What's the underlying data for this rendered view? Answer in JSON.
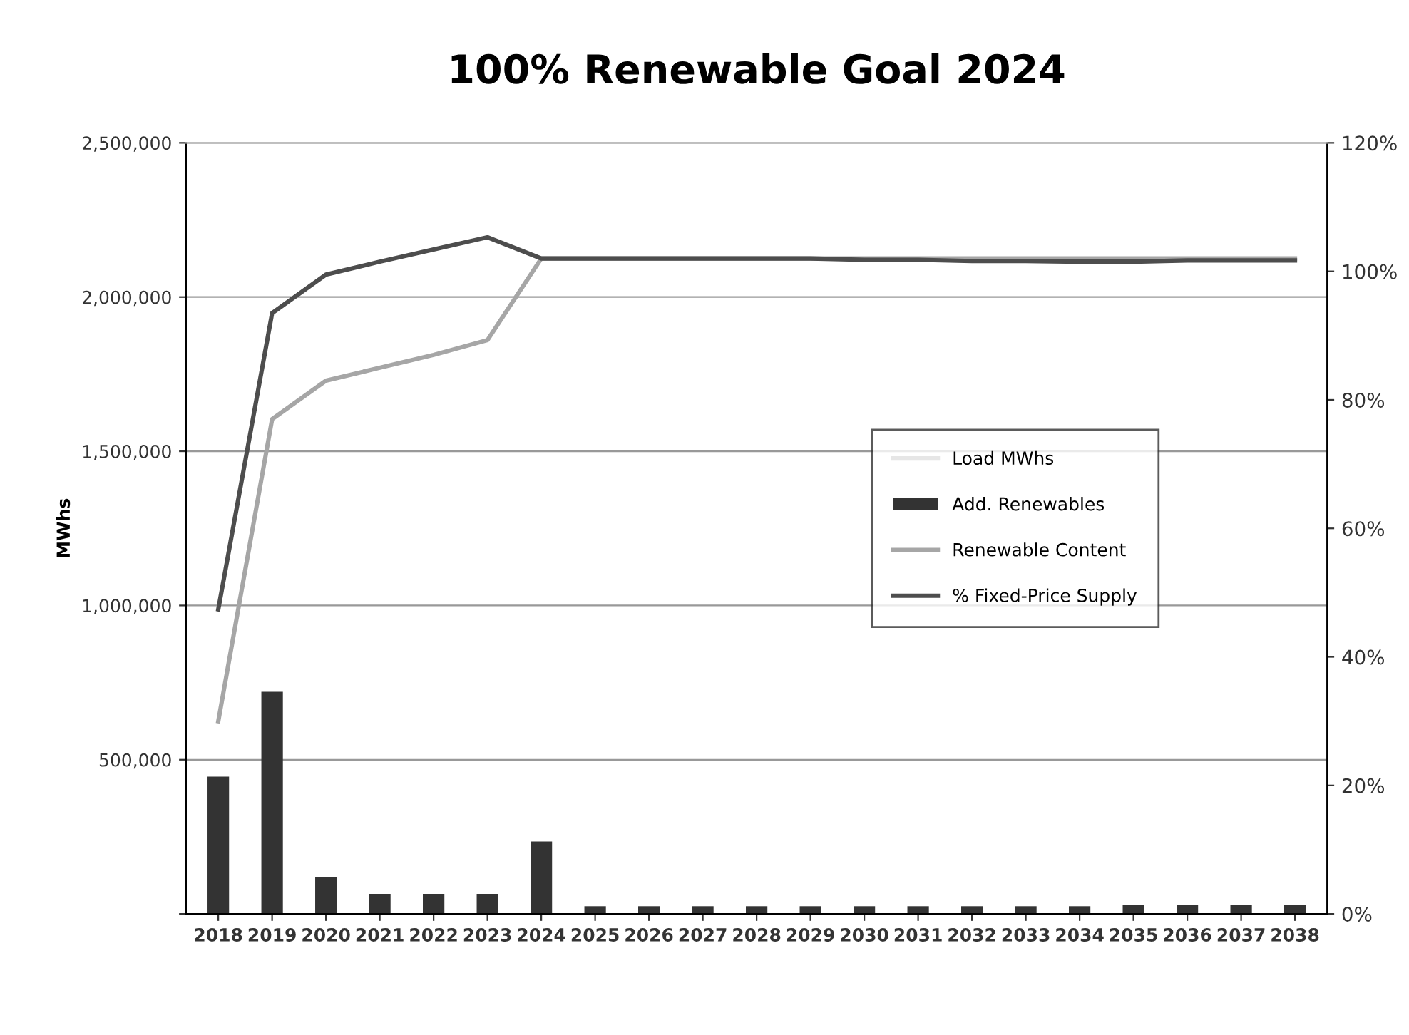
{
  "chart_data": {
    "type": "bar",
    "title": "100% Renewable Goal 2024",
    "ylabel": "MWhs",
    "categories": [
      "2018",
      "2019",
      "2020",
      "2021",
      "2022",
      "2023",
      "2024",
      "2025",
      "2026",
      "2027",
      "2028",
      "2029",
      "2030",
      "2031",
      "2032",
      "2033",
      "2034",
      "2035",
      "2036",
      "2037",
      "2038"
    ],
    "series": [
      {
        "name": "Load MWhs",
        "type": "line",
        "color": "#e6e6e6",
        "values": [
          null,
          null,
          null,
          null,
          null,
          null,
          null,
          null,
          null,
          null,
          null,
          null,
          null,
          null,
          null,
          null,
          null,
          null,
          null,
          null,
          null
        ]
      },
      {
        "name": "Add. Renewables",
        "color": "#333333",
        "values": [
          445000,
          720000,
          120000,
          65000,
          65000,
          65000,
          235000,
          25000,
          25000,
          25000,
          25000,
          25000,
          25000,
          25000,
          25000,
          25000,
          25000,
          30000,
          30000,
          30000,
          30000
        ]
      },
      {
        "name": "Renewable Content",
        "type": "line",
        "axis": "y2",
        "color": "#a6a6a6",
        "values": [
          30,
          77,
          83,
          85,
          87,
          89.3,
          102,
          102,
          102,
          102,
          102,
          102,
          102,
          102,
          102,
          102,
          102,
          102,
          102,
          102,
          102
        ]
      },
      {
        "name": "% Fixed-Price Supply",
        "type": "line",
        "axis": "y2",
        "color": "#4d4d4d",
        "values": [
          47.4,
          93.5,
          99.5,
          101.5,
          103.4,
          105.3,
          102,
          102,
          102,
          102,
          102,
          102,
          101.8,
          101.8,
          101.6,
          101.6,
          101.5,
          101.5,
          101.7,
          101.7,
          101.7
        ]
      }
    ],
    "ylim": [
      0,
      2500000
    ],
    "yticks": [
      {
        "value": 0,
        "label": null
      },
      {
        "value": 500000,
        "label": "500,000"
      },
      {
        "value": 1000000,
        "label": "1,000,000"
      },
      {
        "value": 1500000,
        "label": "1,500,000"
      },
      {
        "value": 2000000,
        "label": "2,000,000"
      },
      {
        "value": 2500000,
        "label": "2,500,000"
      }
    ],
    "y2lim": [
      0,
      120
    ],
    "y2ticks": [
      {
        "value": 0,
        "label": "0%"
      },
      {
        "value": 20,
        "label": "20%"
      },
      {
        "value": 40,
        "label": "40%"
      },
      {
        "value": 60,
        "label": "60%"
      },
      {
        "value": 80,
        "label": "80%"
      },
      {
        "value": 100,
        "label": "100%"
      },
      {
        "value": 120,
        "label": "120%"
      }
    ],
    "grid": "y",
    "legend": "right",
    "marker": "none",
    "line_style": "solid"
  }
}
